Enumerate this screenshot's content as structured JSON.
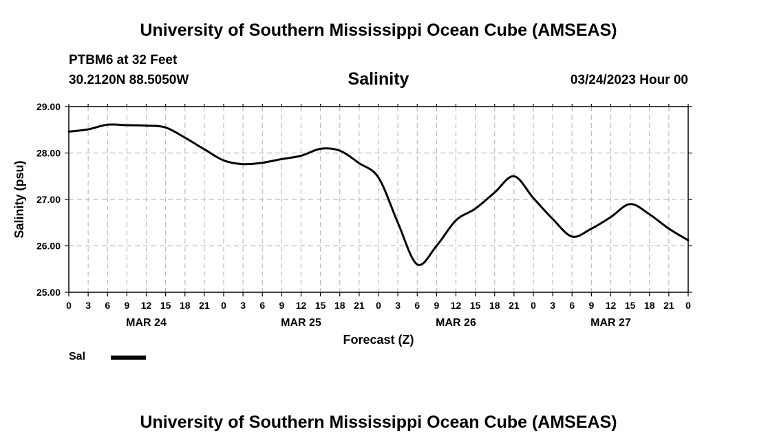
{
  "header": {
    "title": "University of Southern Mississippi Ocean Cube (AMSEAS)",
    "station": "PTBM6 at 32 Feet",
    "coordinates": "30.2120N  88.5050W",
    "date": "03/24/2023 Hour 00"
  },
  "footer": {
    "title": "University of Southern Mississippi Ocean Cube (AMSEAS)"
  },
  "chart_data": {
    "type": "line",
    "title": "Salinity",
    "xlabel": "Forecast (Z)",
    "ylabel": "Salinity (psu)",
    "ylim": [
      25.0,
      29.0
    ],
    "yticks": [
      "25.00",
      "26.00",
      "27.00",
      "28.00",
      "29.00"
    ],
    "xlim_hours": [
      0,
      96
    ],
    "xtick_labels": [
      "0",
      "3",
      "6",
      "9",
      "12",
      "15",
      "18",
      "21",
      "0",
      "3",
      "6",
      "9",
      "12",
      "15",
      "18",
      "21",
      "0",
      "3",
      "6",
      "9",
      "12",
      "15",
      "18",
      "21",
      "0",
      "3",
      "6",
      "9",
      "12",
      "15",
      "18",
      "21",
      "0"
    ],
    "day_labels": [
      {
        "hour": 12,
        "label": "MAR 24"
      },
      {
        "hour": 36,
        "label": "MAR 25"
      },
      {
        "hour": 60,
        "label": "MAR 26"
      },
      {
        "hour": 84,
        "label": "MAR 27"
      }
    ],
    "grid": true,
    "legend_position": "bottom-left",
    "series": [
      {
        "name": "Sal",
        "color": "#000000",
        "x": [
          0,
          3,
          6,
          9,
          12,
          15,
          18,
          21,
          24,
          27,
          30,
          33,
          36,
          39,
          42,
          45,
          48,
          51,
          54,
          57,
          60,
          63,
          66,
          69,
          72,
          75,
          78,
          81,
          84,
          87,
          90,
          93,
          96
        ],
        "values": [
          28.46,
          28.51,
          28.61,
          28.6,
          28.59,
          28.55,
          28.33,
          28.08,
          27.84,
          27.76,
          27.79,
          27.87,
          27.94,
          28.09,
          28.05,
          27.78,
          27.47,
          26.5,
          25.6,
          26.0,
          26.55,
          26.8,
          27.15,
          27.5,
          27.03,
          26.58,
          26.2,
          26.37,
          26.62,
          26.9,
          26.68,
          26.37,
          26.12
        ]
      }
    ]
  }
}
